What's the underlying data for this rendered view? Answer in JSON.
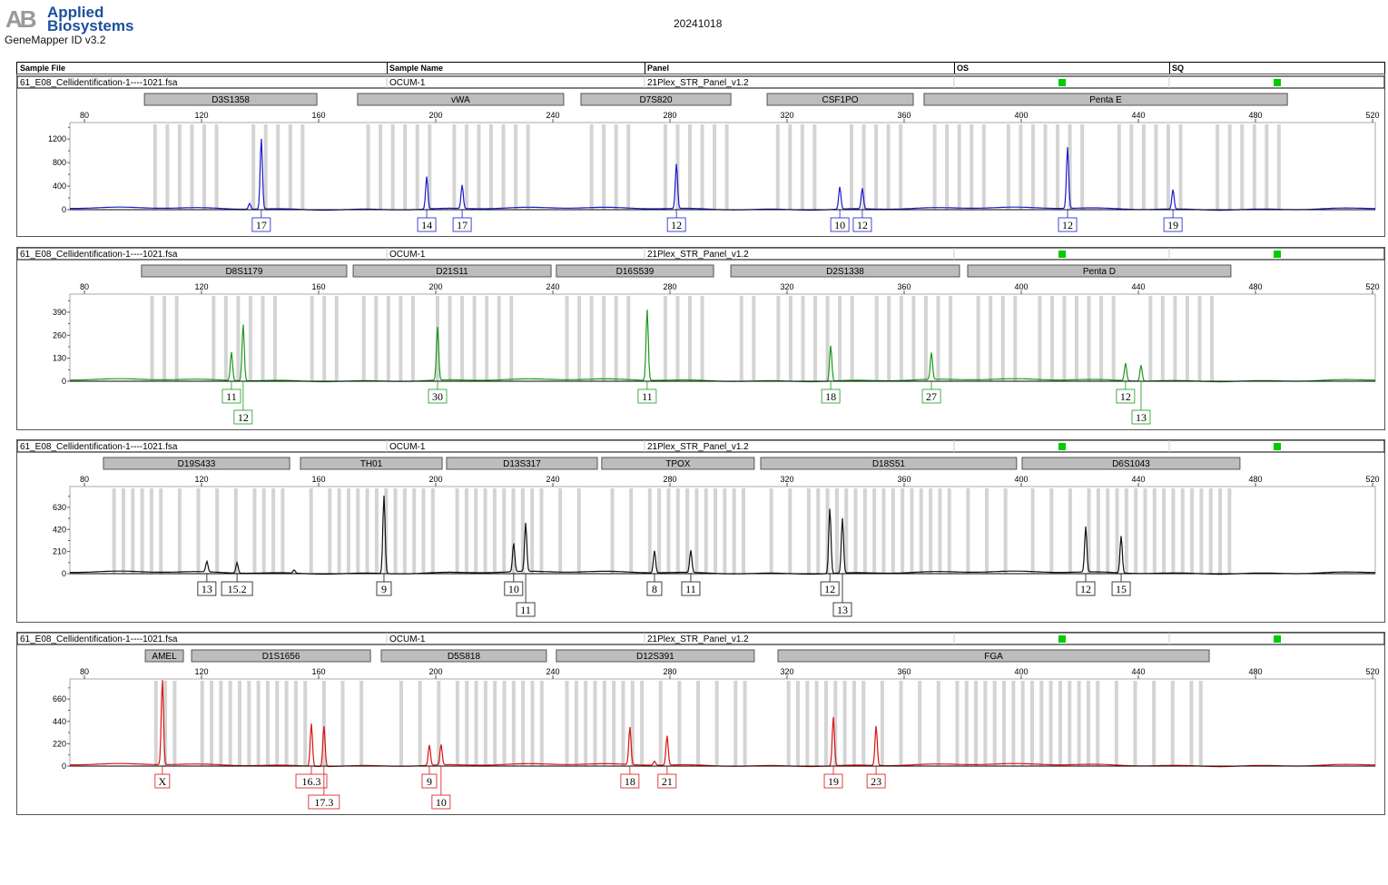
{
  "header": {
    "brand_mark": "AB",
    "brand_line1": "Applied",
    "brand_line2": "Biosystems",
    "app_version": "GeneMapper ID v3.2",
    "date": "20241018"
  },
  "table_columns": [
    "Sample File",
    "Sample Name",
    "Panel",
    "OS",
    "SQ"
  ],
  "x_ticks": [
    80,
    120,
    160,
    200,
    240,
    280,
    320,
    360,
    400,
    440,
    480,
    520
  ],
  "panels": [
    {
      "sample_file": "61_E08_Cellidentification-1----1021.fsa",
      "sample_name": "OCUM-1",
      "panel": "21Plex_STR_Panel_v1.2",
      "os_color": "#00cc00",
      "sq_color": "#00cc00",
      "color": "#1a1acc",
      "y_ticks": [
        0,
        400,
        800,
        1200
      ],
      "y_max": 1450,
      "loci": [
        {
          "name": "D3S1358",
          "start": 100.5,
          "end": 159.4
        },
        {
          "name": "vWA",
          "start": 173.3,
          "end": 243.7
        },
        {
          "name": "D7S820",
          "start": 249.6,
          "end": 300.8
        },
        {
          "name": "CSF1PO",
          "start": 313.2,
          "end": 363.1
        },
        {
          "name": "Penta E",
          "start": 366.8,
          "end": 490.9
        }
      ],
      "peaks": [
        {
          "size": 135.8,
          "height": 100,
          "allele": null,
          "row": 1
        },
        {
          "size": 139.8,
          "height": 1200,
          "allele": "17",
          "row": 1
        },
        {
          "size": 196.3,
          "height": 550,
          "allele": "14",
          "row": 1
        },
        {
          "size": 208.4,
          "height": 400,
          "allele": "17",
          "row": 1
        },
        {
          "size": 281.6,
          "height": 760,
          "allele": "12",
          "row": 1
        },
        {
          "size": 337.4,
          "height": 380,
          "allele": "10",
          "row": 1
        },
        {
          "size": 345.1,
          "height": 350,
          "allele": "12",
          "row": 1
        },
        {
          "size": 415.2,
          "height": 1040,
          "allele": "12",
          "row": 1
        },
        {
          "size": 451.2,
          "height": 330,
          "allele": "19",
          "row": 1
        }
      ]
    },
    {
      "sample_file": "61_E08_Cellidentification-1----1021.fsa",
      "sample_name": "OCUM-1",
      "panel": "21Plex_STR_Panel_v1.2",
      "os_color": "#00cc00",
      "sq_color": "#00cc00",
      "color": "#1a9a1a",
      "y_ticks": [
        0,
        130,
        260,
        390
      ],
      "y_max": 482,
      "loci": [
        {
          "name": "D8S1179",
          "start": 99.5,
          "end": 169.6
        },
        {
          "name": "D21S11",
          "start": 171.8,
          "end": 239.4
        },
        {
          "name": "D16S539",
          "start": 241.2,
          "end": 294.9
        },
        {
          "name": "D2S1338",
          "start": 300.8,
          "end": 378.9
        },
        {
          "name": "Penta D",
          "start": 381.7,
          "end": 471.6
        }
      ],
      "peaks": [
        {
          "size": 129.6,
          "height": 160,
          "allele": "11",
          "row": 1
        },
        {
          "size": 133.6,
          "height": 320,
          "allele": "12",
          "row": 2
        },
        {
          "size": 200,
          "height": 300,
          "allele": "30",
          "row": 1
        },
        {
          "size": 271.6,
          "height": 400,
          "allele": "11",
          "row": 1
        },
        {
          "size": 334.3,
          "height": 200,
          "allele": "18",
          "row": 1
        },
        {
          "size": 368.7,
          "height": 150,
          "allele": "27",
          "row": 1
        },
        {
          "size": 435,
          "height": 100,
          "allele": "12",
          "row": 1
        },
        {
          "size": 440.3,
          "height": 90,
          "allele": "13",
          "row": 2
        }
      ]
    },
    {
      "sample_file": "61_E08_Cellidentification-1----1021.fsa",
      "sample_name": "OCUM-1",
      "panel": "21Plex_STR_Panel_v1.2",
      "os_color": "#00cc00",
      "sq_color": "#00cc00",
      "color": "#111111",
      "y_ticks": [
        0,
        210,
        420,
        630
      ],
      "y_max": 810,
      "loci": [
        {
          "name": "D19S433",
          "start": 86.5,
          "end": 150.1
        },
        {
          "name": "TH01",
          "start": 153.8,
          "end": 202.2
        },
        {
          "name": "D13S317",
          "start": 203.7,
          "end": 255.2
        },
        {
          "name": "TPOX",
          "start": 256.7,
          "end": 308.8
        },
        {
          "name": "D18S51",
          "start": 311,
          "end": 398.4
        },
        {
          "name": "D6S1043",
          "start": 400.3,
          "end": 474.7
        }
      ],
      "peaks": [
        {
          "size": 121.2,
          "height": 100,
          "allele": "13",
          "row": 1
        },
        {
          "size": 131.5,
          "height": 100,
          "allele": "15.2",
          "row": 1
        },
        {
          "size": 151,
          "height": 30,
          "allele": null,
          "row": 1
        },
        {
          "size": 181.7,
          "height": 740,
          "allele": "9",
          "row": 1
        },
        {
          "size": 226,
          "height": 270,
          "allele": "10",
          "row": 1
        },
        {
          "size": 230.1,
          "height": 460,
          "allele": "11",
          "row": 2
        },
        {
          "size": 274.1,
          "height": 210,
          "allele": "8",
          "row": 1
        },
        {
          "size": 286.5,
          "height": 210,
          "allele": "11",
          "row": 1
        },
        {
          "size": 334,
          "height": 620,
          "allele": "12",
          "row": 1
        },
        {
          "size": 338.3,
          "height": 520,
          "allele": "13",
          "row": 2
        },
        {
          "size": 421.4,
          "height": 430,
          "allele": "12",
          "row": 1
        },
        {
          "size": 433.5,
          "height": 350,
          "allele": "15",
          "row": 1
        }
      ]
    },
    {
      "sample_file": "61_E08_Cellidentification-1----1021.fsa",
      "sample_name": "OCUM-1",
      "panel": "21Plex_STR_Panel_v1.2",
      "os_color": "#00cc00",
      "sq_color": "#00cc00",
      "color": "#dd1111",
      "y_ticks": [
        0,
        220,
        440,
        660
      ],
      "y_max": 840,
      "loci": [
        {
          "name": "AMEL",
          "start": 100.8,
          "end": 113.8
        },
        {
          "name": "D1S1656",
          "start": 116.6,
          "end": 177.7
        },
        {
          "name": "D5S818",
          "start": 181.4,
          "end": 237.8
        },
        {
          "name": "D12S391",
          "start": 241.2,
          "end": 308.8
        },
        {
          "name": "FGA",
          "start": 316.9,
          "end": 464.2
        }
      ],
      "peaks": [
        {
          "size": 106,
          "height": 840,
          "allele": "X",
          "row": 1
        },
        {
          "size": 156.9,
          "height": 420,
          "allele": "16.3",
          "row": 1
        },
        {
          "size": 161.2,
          "height": 400,
          "allele": "17.3",
          "row": 2
        },
        {
          "size": 197.2,
          "height": 200,
          "allele": "9",
          "row": 1
        },
        {
          "size": 201.2,
          "height": 200,
          "allele": "10",
          "row": 2
        },
        {
          "size": 265.7,
          "height": 370,
          "allele": "18",
          "row": 1
        },
        {
          "size": 274.1,
          "height": 40,
          "allele": null,
          "row": 1
        },
        {
          "size": 278.4,
          "height": 290,
          "allele": "21",
          "row": 1
        },
        {
          "size": 335.2,
          "height": 480,
          "allele": "19",
          "row": 1
        },
        {
          "size": 349.8,
          "height": 390,
          "allele": "23",
          "row": 1
        }
      ]
    }
  ]
}
